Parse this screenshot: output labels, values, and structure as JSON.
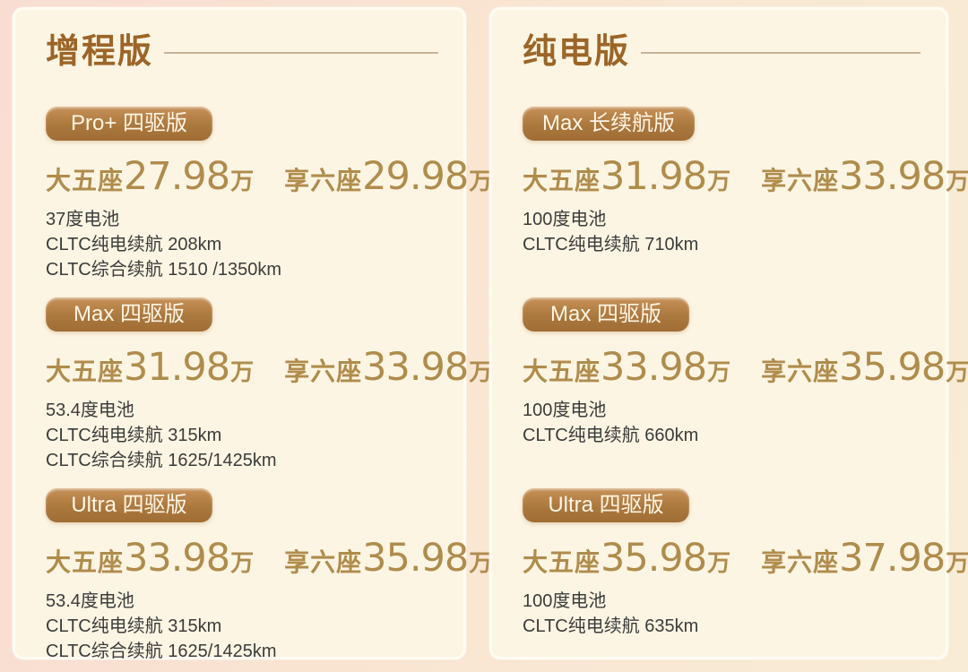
{
  "colors": {
    "outer_bg_left": "#f9ddd2",
    "outer_bg_right": "#f8ecd6",
    "card_bg": "#fcf5e3",
    "title": "#9c6528",
    "divider": "#c6b499",
    "badge_gradient_top": "#c79158",
    "badge_gradient_bottom": "#a06d35",
    "badge_text": "#fdf5e4",
    "price": "#b08c4c",
    "detail_text": "#3c3c3c"
  },
  "columns": [
    {
      "title": "增程版",
      "trims": [
        {
          "badge": "Pro+ 四驱版",
          "prices": [
            {
              "label": "大五座",
              "value": "27.98",
              "unit": "万"
            },
            {
              "label": "享六座",
              "value": "29.98",
              "unit": "万"
            }
          ],
          "details": [
            "37度电池",
            "CLTC纯电续航 208km",
            "CLTC综合续航 1510 /1350km"
          ]
        },
        {
          "badge": "Max 四驱版",
          "prices": [
            {
              "label": "大五座",
              "value": "31.98",
              "unit": "万"
            },
            {
              "label": "享六座",
              "value": "33.98",
              "unit": "万"
            }
          ],
          "details": [
            "53.4度电池",
            "CLTC纯电续航 315km",
            "CLTC综合续航 1625/1425km"
          ]
        },
        {
          "badge": "Ultra 四驱版",
          "prices": [
            {
              "label": "大五座",
              "value": "33.98",
              "unit": "万"
            },
            {
              "label": "享六座",
              "value": "35.98",
              "unit": "万"
            }
          ],
          "details": [
            "53.4度电池",
            "CLTC纯电续航 315km",
            "CLTC综合续航 1625/1425km"
          ]
        }
      ]
    },
    {
      "title": "纯电版",
      "trims": [
        {
          "badge": "Max 长续航版",
          "prices": [
            {
              "label": "大五座",
              "value": "31.98",
              "unit": "万"
            },
            {
              "label": "享六座",
              "value": "33.98",
              "unit": "万"
            }
          ],
          "details": [
            "100度电池",
            "CLTC纯电续航 710km"
          ]
        },
        {
          "badge": "Max 四驱版",
          "prices": [
            {
              "label": "大五座",
              "value": "33.98",
              "unit": "万"
            },
            {
              "label": "享六座",
              "value": "35.98",
              "unit": "万"
            }
          ],
          "details": [
            "100度电池",
            "CLTC纯电续航 660km"
          ]
        },
        {
          "badge": "Ultra 四驱版",
          "prices": [
            {
              "label": "大五座",
              "value": "35.98",
              "unit": "万"
            },
            {
              "label": "享六座",
              "value": "37.98",
              "unit": "万"
            }
          ],
          "details": [
            "100度电池",
            "CLTC纯电续航 635km"
          ]
        }
      ]
    }
  ]
}
